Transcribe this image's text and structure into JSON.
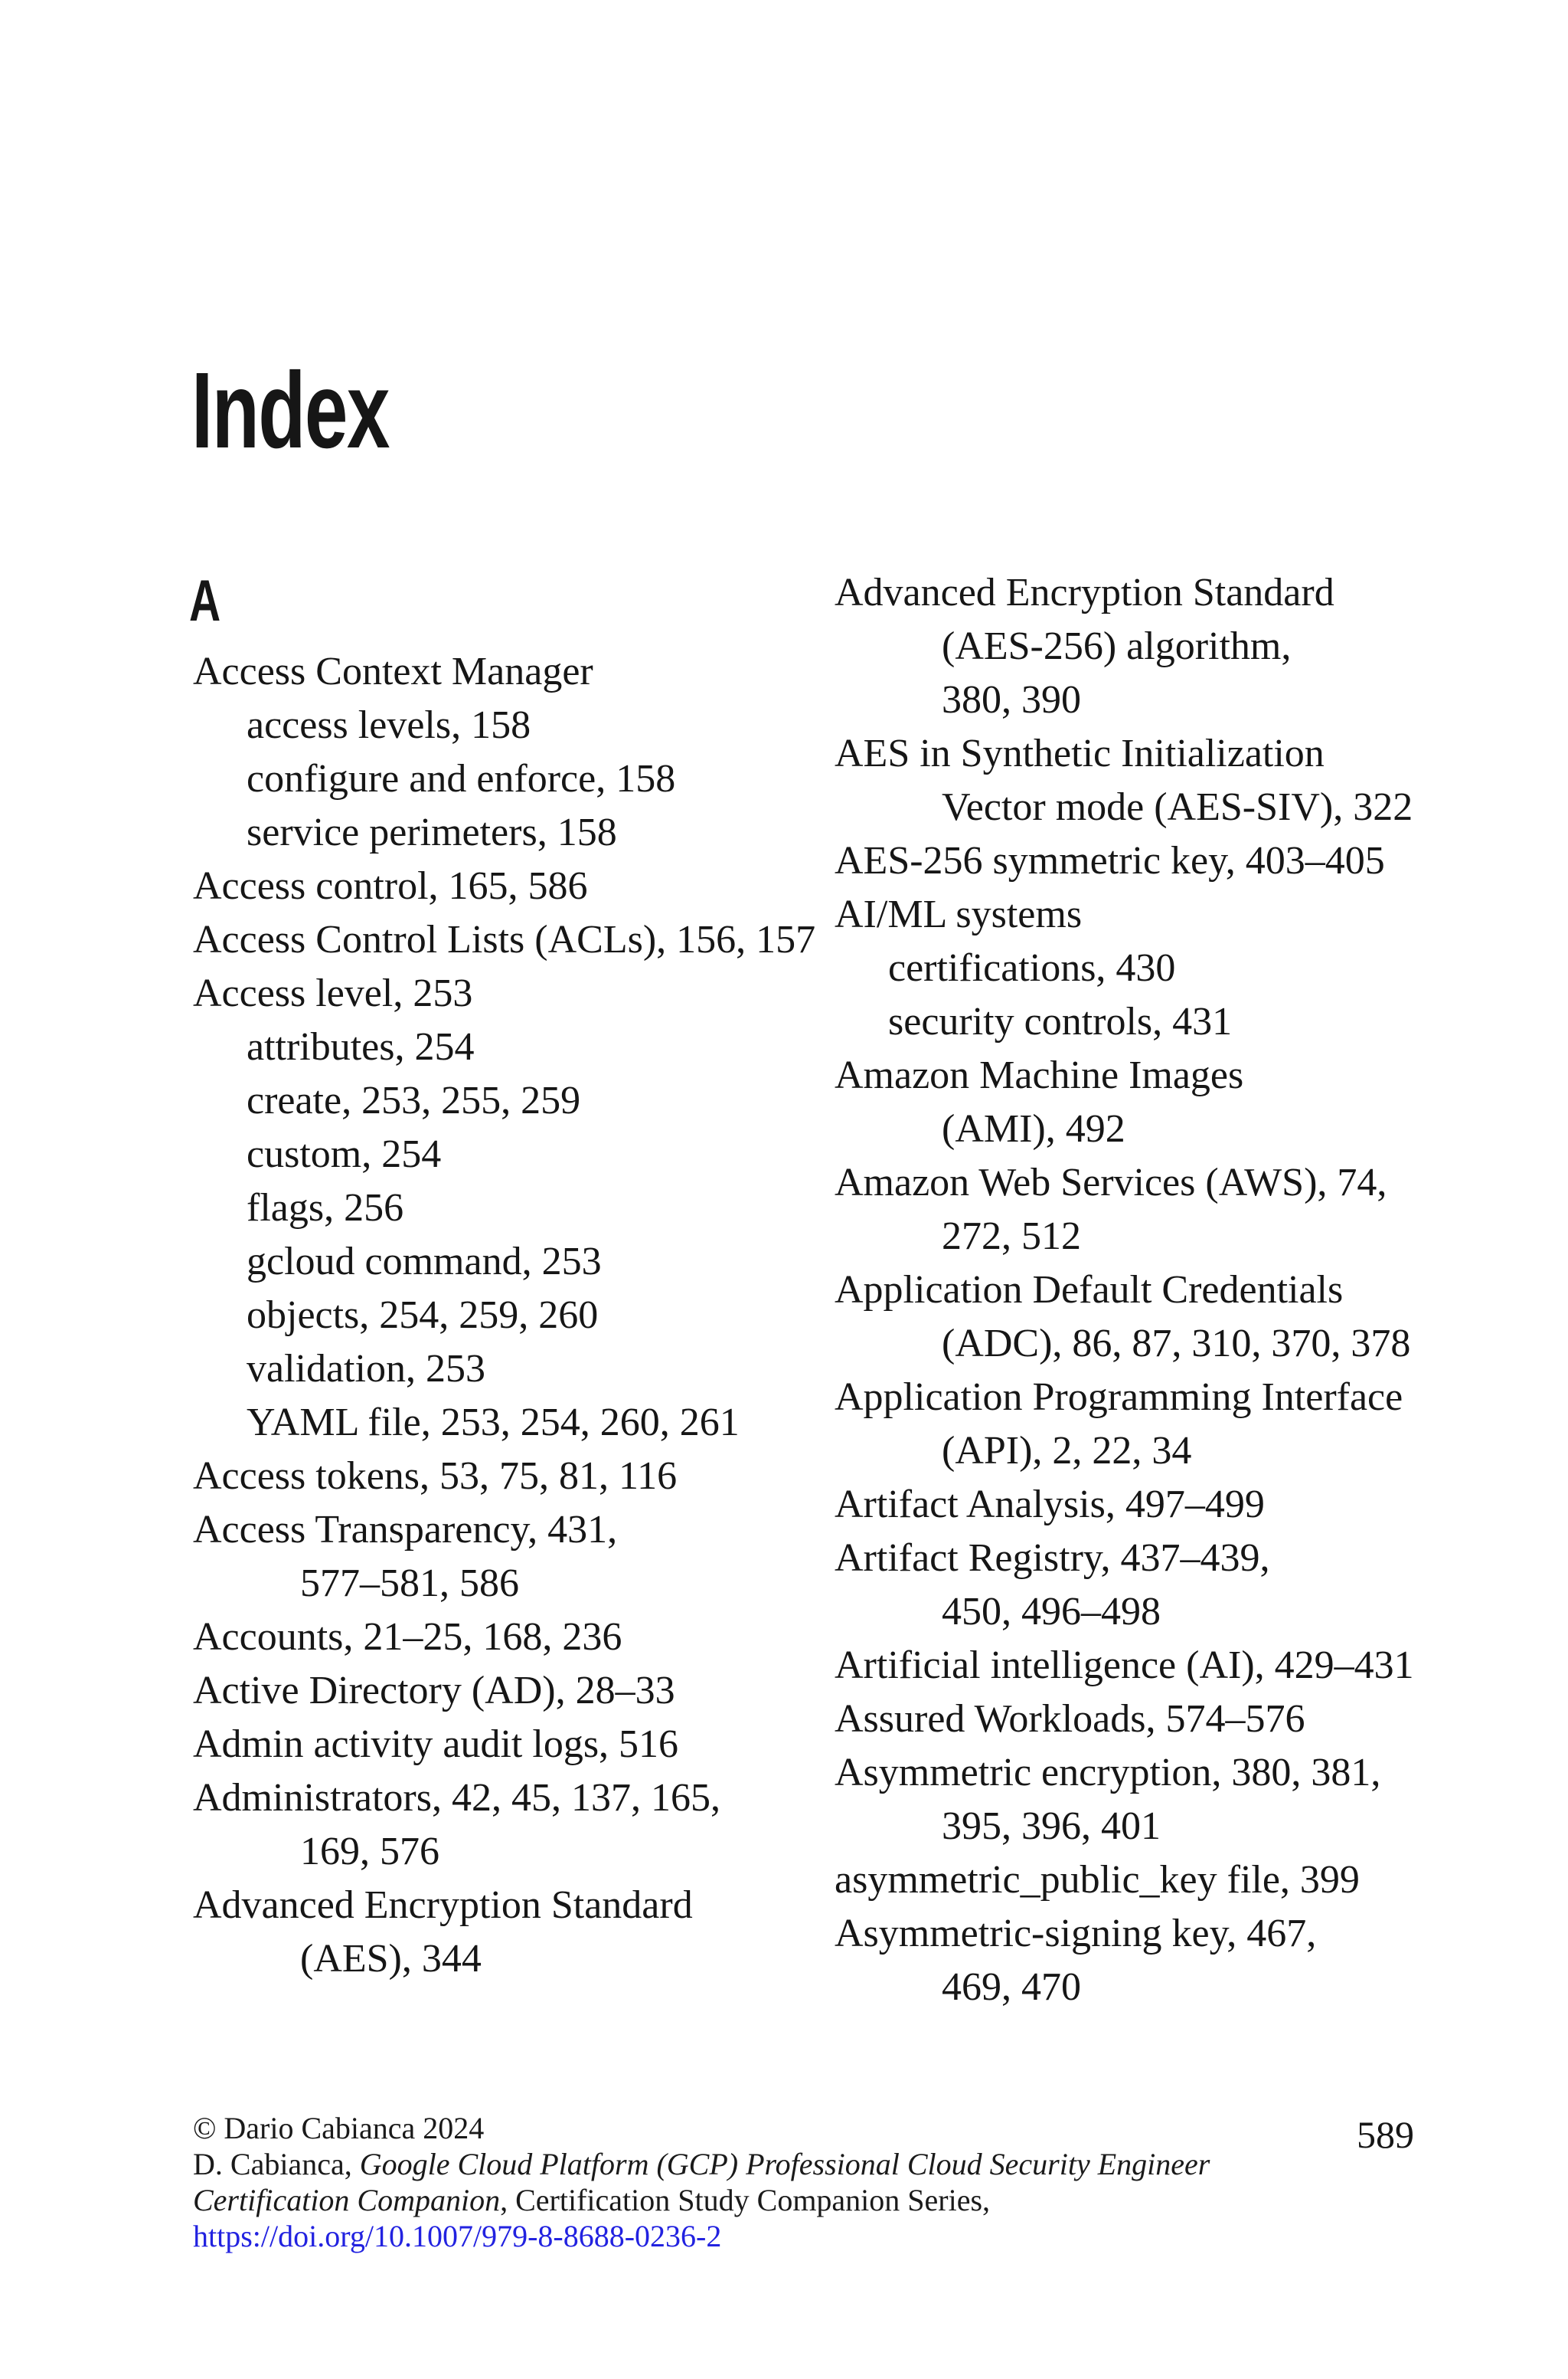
{
  "page": {
    "title": "Index",
    "section_letter": "A",
    "page_number": "589"
  },
  "index": {
    "left_column": {
      "lines": [
        {
          "text": "Access Context Manager",
          "indent": "l1"
        },
        {
          "text": "access levels, 158",
          "indent": "l2"
        },
        {
          "text": "configure and enforce, 158",
          "indent": "l2"
        },
        {
          "text": "service perimeters, 158",
          "indent": "l2"
        },
        {
          "text": "Access control, 165, 586",
          "indent": "l1"
        },
        {
          "text": "Access Control Lists (ACLs), 156, 157",
          "indent": "l1"
        },
        {
          "text": "Access level, 253",
          "indent": "l1"
        },
        {
          "text": "attributes, 254",
          "indent": "l2"
        },
        {
          "text": "create, 253, 255, 259",
          "indent": "l2"
        },
        {
          "text": "custom, 254",
          "indent": "l2"
        },
        {
          "text": "flags, 256",
          "indent": "l2"
        },
        {
          "text": "gcloud command, 253",
          "indent": "l2"
        },
        {
          "text": "objects, 254, 259, 260",
          "indent": "l2"
        },
        {
          "text": "validation, 253",
          "indent": "l2"
        },
        {
          "text": "YAML file, 253, 254, 260, 261",
          "indent": "l2"
        },
        {
          "text": "Access tokens, 53, 75, 81, 116",
          "indent": "l1"
        },
        {
          "text": "Access Transparency, 431,",
          "indent": "l1"
        },
        {
          "text": "577–581, 586",
          "indent": "wrap"
        },
        {
          "text": "Accounts, 21–25, 168, 236",
          "indent": "l1"
        },
        {
          "text": "Active Directory (AD), 28–33",
          "indent": "l1"
        },
        {
          "text": "Admin activity audit logs, 516",
          "indent": "l1"
        },
        {
          "text": "Administrators, 42, 45, 137, 165,",
          "indent": "l1"
        },
        {
          "text": "169, 576",
          "indent": "wrap"
        },
        {
          "text": "Advanced Encryption Standard",
          "indent": "l1"
        },
        {
          "text": "(AES), 344",
          "indent": "wrap"
        }
      ]
    },
    "right_column": {
      "lines": [
        {
          "text": "Advanced Encryption Standard",
          "indent": "l1"
        },
        {
          "text": "(AES-256) algorithm,",
          "indent": "wrap"
        },
        {
          "text": "380, 390",
          "indent": "wrap"
        },
        {
          "text": "AES in Synthetic Initialization",
          "indent": "l1"
        },
        {
          "text": "Vector mode (AES-SIV), 322",
          "indent": "wrap"
        },
        {
          "text": "AES-256 symmetric key, 403–405",
          "indent": "l1"
        },
        {
          "text": "AI/ML systems",
          "indent": "l1"
        },
        {
          "text": "certifications, 430",
          "indent": "l2"
        },
        {
          "text": "security controls, 431",
          "indent": "l2"
        },
        {
          "text": "Amazon Machine Images",
          "indent": "l1"
        },
        {
          "text": "(AMI), 492",
          "indent": "wrap"
        },
        {
          "text": "Amazon Web Services (AWS), 74,",
          "indent": "l1"
        },
        {
          "text": "272, 512",
          "indent": "wrap"
        },
        {
          "text": "Application Default Credentials",
          "indent": "l1"
        },
        {
          "text": "(ADC), 86, 87, 310, 370, 378",
          "indent": "wrap"
        },
        {
          "text": "Application Programming Interface",
          "indent": "l1"
        },
        {
          "text": "(API), 2, 22, 34",
          "indent": "wrap"
        },
        {
          "text": "Artifact Analysis, 497–499",
          "indent": "l1"
        },
        {
          "text": "Artifact Registry, 437–439,",
          "indent": "l1"
        },
        {
          "text": "450, 496–498",
          "indent": "wrap"
        },
        {
          "text": "Artificial intelligence (AI), 429–431",
          "indent": "l1"
        },
        {
          "text": "Assured Workloads, 574–576",
          "indent": "l1"
        },
        {
          "text": "Asymmetric encryption, 380, 381,",
          "indent": "l1"
        },
        {
          "text": "395, 396, 401",
          "indent": "wrap"
        },
        {
          "text": "asymmetric_public_key file, 399",
          "indent": "l1"
        },
        {
          "text": "Asymmetric-signing key, 467,",
          "indent": "l1"
        },
        {
          "text": "469, 470",
          "indent": "wrap"
        }
      ]
    }
  },
  "footer": {
    "copyright": "© Dario Cabianca 2024",
    "citation_line1": {
      "pre": "D. Cabianca, ",
      "italic": "Google Cloud Platform (GCP) Professional Cloud Security Engineer",
      "post": ""
    },
    "citation_line2": {
      "pre": "",
      "italic": "Certification Companion",
      "post": ", Certification Study Companion Series,"
    },
    "doi_link": "https://doi.org/10.1007/979-8-8688-0236-2",
    "link_color": "#2222e0",
    "text_color": "#161616"
  }
}
